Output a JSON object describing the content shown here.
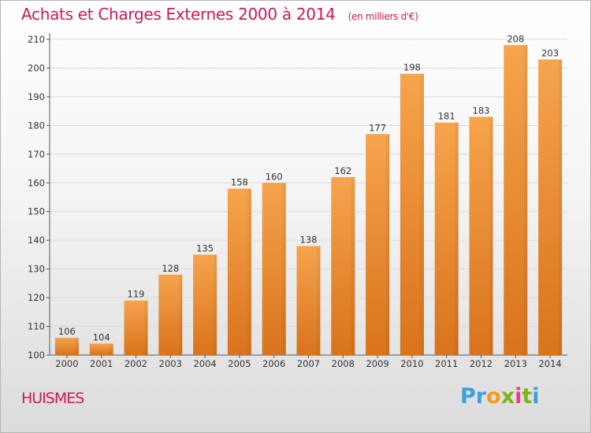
{
  "header": {
    "title": "Achats et Charges Externes 2000 à 2014",
    "unit": "(en milliers d'€)"
  },
  "location": "HUISMES",
  "logo": {
    "letters": [
      "P",
      "r",
      "o",
      "x",
      "i",
      "t",
      "i"
    ],
    "colors": [
      "#3aa0dc",
      "#3aa0dc",
      "#f29b1c",
      "#7ab51d",
      "#e83e8c",
      "#7ab51d",
      "#3aa0dc"
    ]
  },
  "chart_data": {
    "type": "bar",
    "categories": [
      "2000",
      "2001",
      "2002",
      "2003",
      "2004",
      "2005",
      "2006",
      "2007",
      "2008",
      "2009",
      "2010",
      "2011",
      "2012",
      "2013",
      "2014"
    ],
    "values": [
      106,
      104,
      119,
      128,
      135,
      158,
      160,
      138,
      162,
      177,
      198,
      181,
      183,
      208,
      203
    ],
    "title": "Achats et Charges Externes 2000 à 2014",
    "xlabel": "",
    "ylabel": "",
    "ylim": [
      100,
      210
    ],
    "yticks": [
      100,
      110,
      120,
      130,
      140,
      150,
      160,
      170,
      180,
      190,
      200,
      210
    ],
    "grid": true,
    "bar_color_top": "#f6a44d",
    "bar_color_bottom": "#d9731c"
  }
}
